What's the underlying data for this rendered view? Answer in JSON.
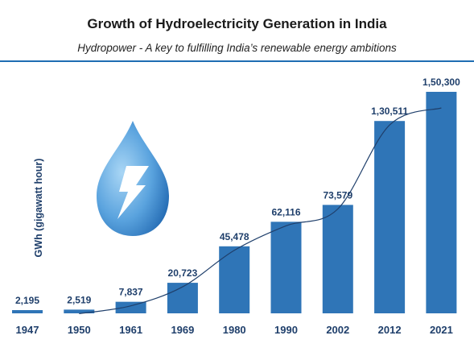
{
  "colors": {
    "bar": "#2f75b7",
    "text": "#1f3f6b",
    "divider": "#1f6db3",
    "drop_light": "#a9d6f5",
    "drop_dark": "#1d64ae"
  },
  "icon": "water-drop-lightning-icon",
  "chart_data": {
    "type": "bar",
    "title": "Growth of Hydroelectricity Generation in India",
    "subtitle": "Hydropower - A key to fulfilling India’s renewable energy ambitions",
    "xlabel": "",
    "ylabel": "GWh (gigawatt hour)",
    "categories": [
      "1947",
      "1950",
      "1961",
      "1969",
      "1980",
      "1990",
      "2002",
      "2012",
      "2021"
    ],
    "values": [
      2195,
      2519,
      7837,
      20723,
      45478,
      62116,
      73579,
      130511,
      150300
    ],
    "value_labels": [
      "2,195",
      "2,519",
      "7,837",
      "20,723",
      "45,478",
      "62,116",
      "73,579",
      "1,30,511",
      "1,50,300"
    ],
    "ylim": [
      0,
      150300
    ],
    "trendline": true,
    "grid": false,
    "legend": "none"
  }
}
